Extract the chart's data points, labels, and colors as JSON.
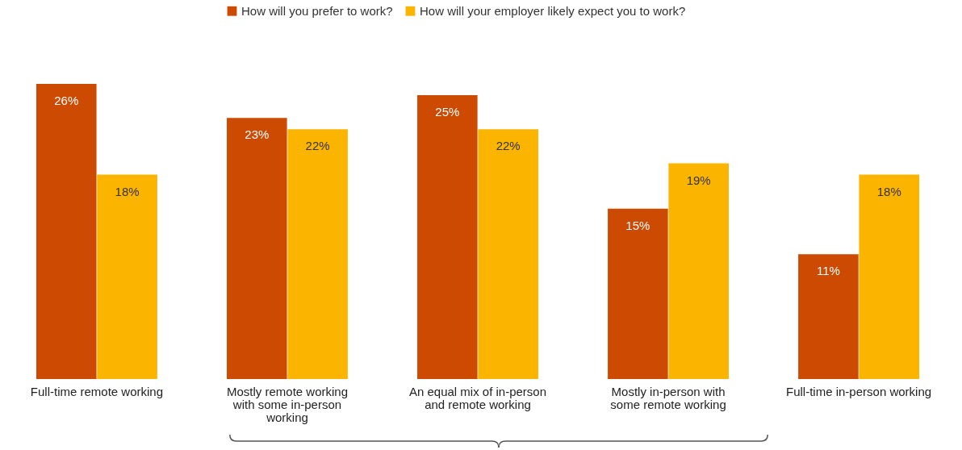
{
  "chart_data": {
    "type": "bar",
    "categories": [
      "Full-time remote working",
      "Mostly remote working with some in-person working",
      "An equal mix of in-person and remote working",
      "Mostly in-person with some remote working",
      "Full-time in-person working"
    ],
    "series": [
      {
        "name": "How will you prefer to work?",
        "color": "#cc4a02",
        "values": [
          26,
          23,
          25,
          15,
          11
        ],
        "value_labels": [
          "26%",
          "23%",
          "25%",
          "15%",
          "11%"
        ]
      },
      {
        "name": "How will your employer likely expect you to work?",
        "color": "#fbb400",
        "values": [
          18,
          22,
          22,
          19,
          18
        ],
        "value_labels": [
          "18%",
          "22%",
          "22%",
          "19%",
          "18%"
        ]
      }
    ],
    "legend": "top",
    "grid": false
  }
}
